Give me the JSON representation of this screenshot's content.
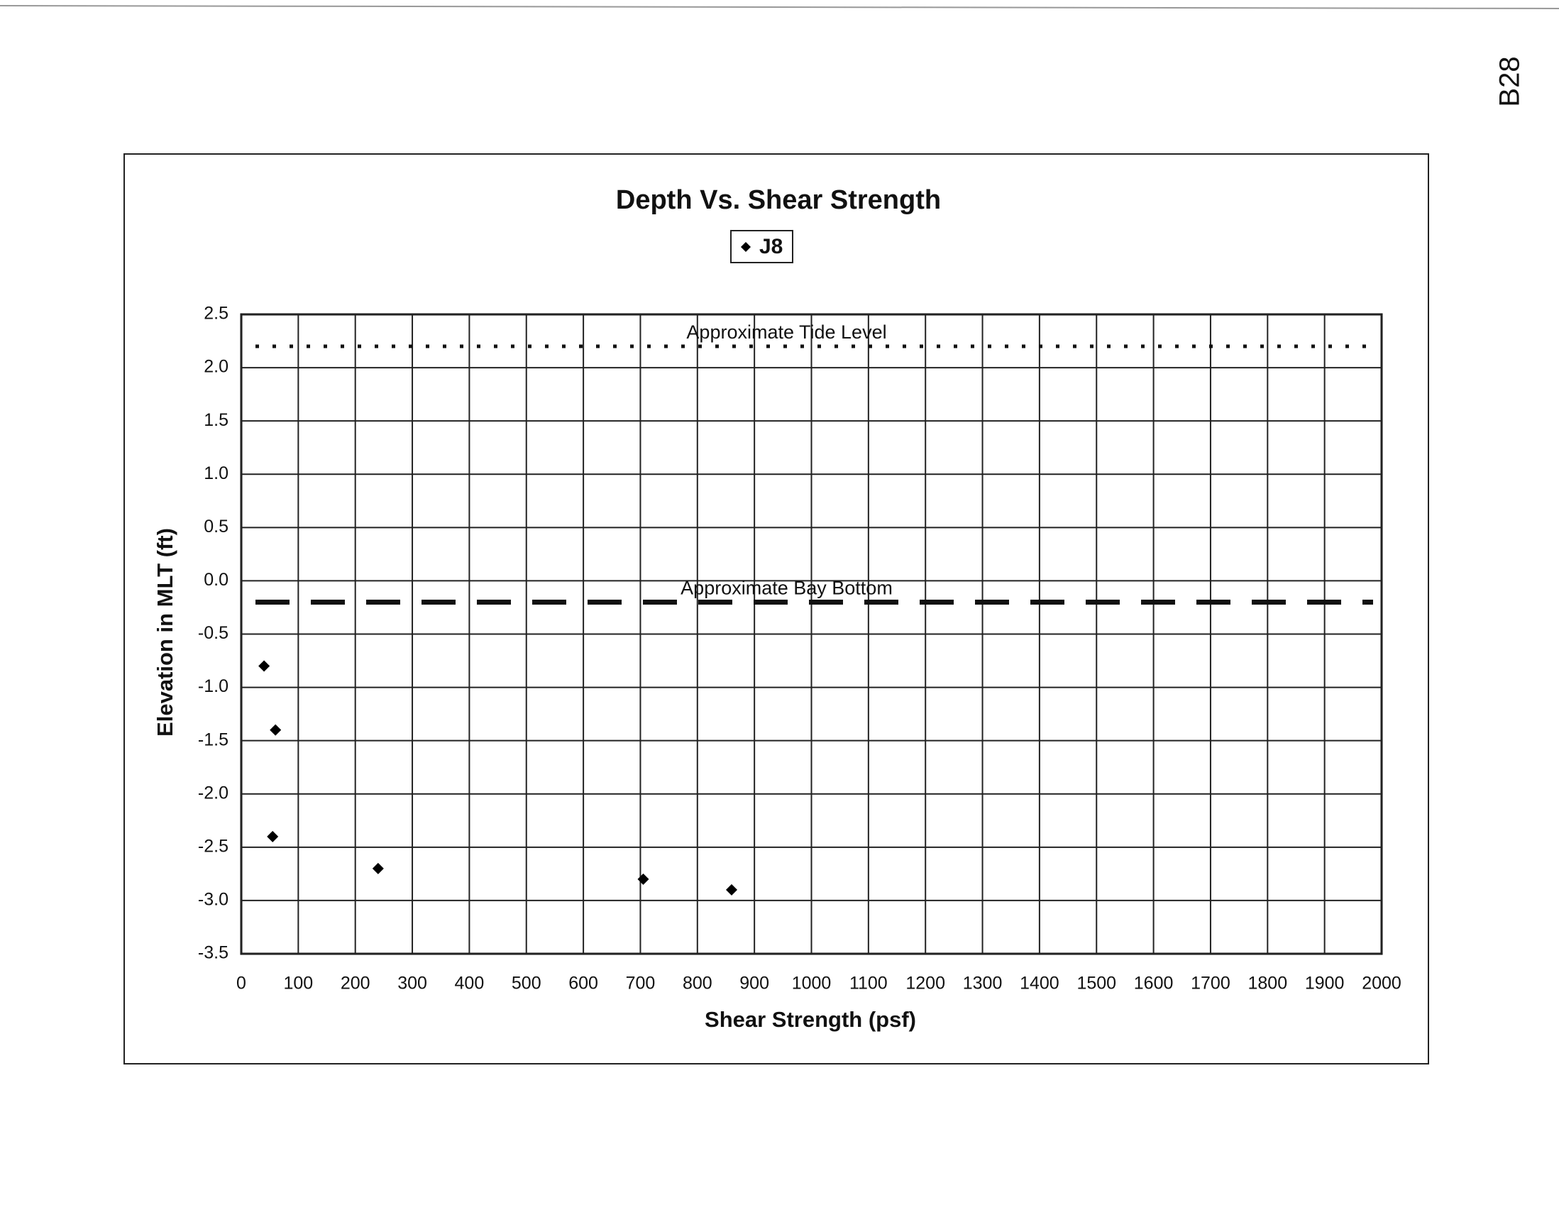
{
  "page_note": "B28",
  "chart_data": {
    "type": "scatter",
    "title": "Depth Vs. Shear Strength",
    "x_label": "Shear Strength (psf)",
    "y_label": "Elevation in MLT (ft)",
    "series": [
      {
        "name": "J8",
        "color": "#000000",
        "marker": "diamond",
        "x": [
          40,
          60,
          55,
          240,
          705,
          860
        ],
        "values": [
          -0.8,
          -1.4,
          -2.4,
          -2.7,
          -2.8,
          -2.9
        ]
      }
    ],
    "xlim": [
      0,
      2000
    ],
    "xticks": [
      0,
      100,
      200,
      300,
      400,
      500,
      600,
      700,
      800,
      900,
      1000,
      1100,
      1200,
      1300,
      1400,
      1500,
      1600,
      1700,
      1800,
      1900,
      2000
    ],
    "ylim": [
      -3.5,
      2.5
    ],
    "yticks": [
      {
        "value": -3.5,
        "label": "-3.5"
      },
      {
        "value": -3,
        "label": "-3.0"
      },
      -2.5,
      {
        "value": -2,
        "label": "-2.0"
      },
      -1.5,
      {
        "value": -1,
        "label": "-1.0"
      },
      -0.5,
      {
        "value": 0,
        "label": "0.0"
      },
      0.5,
      {
        "value": 1,
        "label": "1.0"
      },
      1.5,
      {
        "value": 2,
        "label": "2.0"
      },
      2.5
    ],
    "grid": true,
    "legend": "top",
    "reference_lines": [
      {
        "value": 2.2,
        "label": "Approximate Tide Level",
        "style": "dotted"
      },
      {
        "value": -0.2,
        "label": "Approximate Bay Bottom",
        "style": "dashed"
      }
    ]
  }
}
